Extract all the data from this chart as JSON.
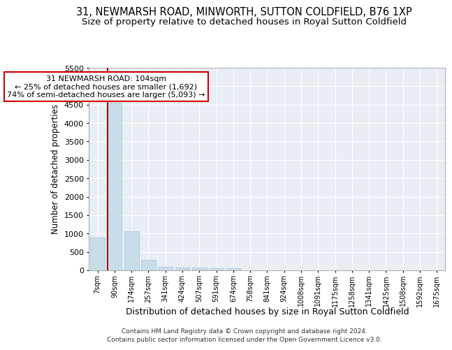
{
  "title": "31, NEWMARSH ROAD, MINWORTH, SUTTON COLDFIELD, B76 1XP",
  "subtitle": "Size of property relative to detached houses in Royal Sutton Coldfield",
  "xlabel": "Distribution of detached houses by size in Royal Sutton Coldfield",
  "ylabel": "Number of detached properties",
  "footnote1": "Contains HM Land Registry data © Crown copyright and database right 2024.",
  "footnote2": "Contains public sector information licensed under the Open Government Licence v3.0.",
  "categories": [
    "7sqm",
    "90sqm",
    "174sqm",
    "257sqm",
    "341sqm",
    "424sqm",
    "507sqm",
    "591sqm",
    "674sqm",
    "758sqm",
    "841sqm",
    "924sqm",
    "1008sqm",
    "1091sqm",
    "1175sqm",
    "1258sqm",
    "1341sqm",
    "1425sqm",
    "1508sqm",
    "1592sqm",
    "1675sqm"
  ],
  "values": [
    900,
    4550,
    1070,
    290,
    100,
    80,
    70,
    60,
    50,
    0,
    0,
    0,
    0,
    0,
    0,
    0,
    0,
    0,
    0,
    0,
    0
  ],
  "bar_color": "#c9dcea",
  "bar_edge_color": "#afc8d8",
  "vline_color": "#aa0000",
  "annotation_text": "31 NEWMARSH ROAD: 104sqm\n← 25% of detached houses are smaller (1,692)\n74% of semi-detached houses are larger (5,093) →",
  "annotation_box_color": "white",
  "annotation_box_edge": "#cc0000",
  "ylim": [
    0,
    5500
  ],
  "yticks": [
    0,
    500,
    1000,
    1500,
    2000,
    2500,
    3000,
    3500,
    4000,
    4500,
    5000,
    5500
  ],
  "plot_bg_color": "#e8eef4",
  "title_fontsize": 10.5,
  "subtitle_fontsize": 9.5
}
